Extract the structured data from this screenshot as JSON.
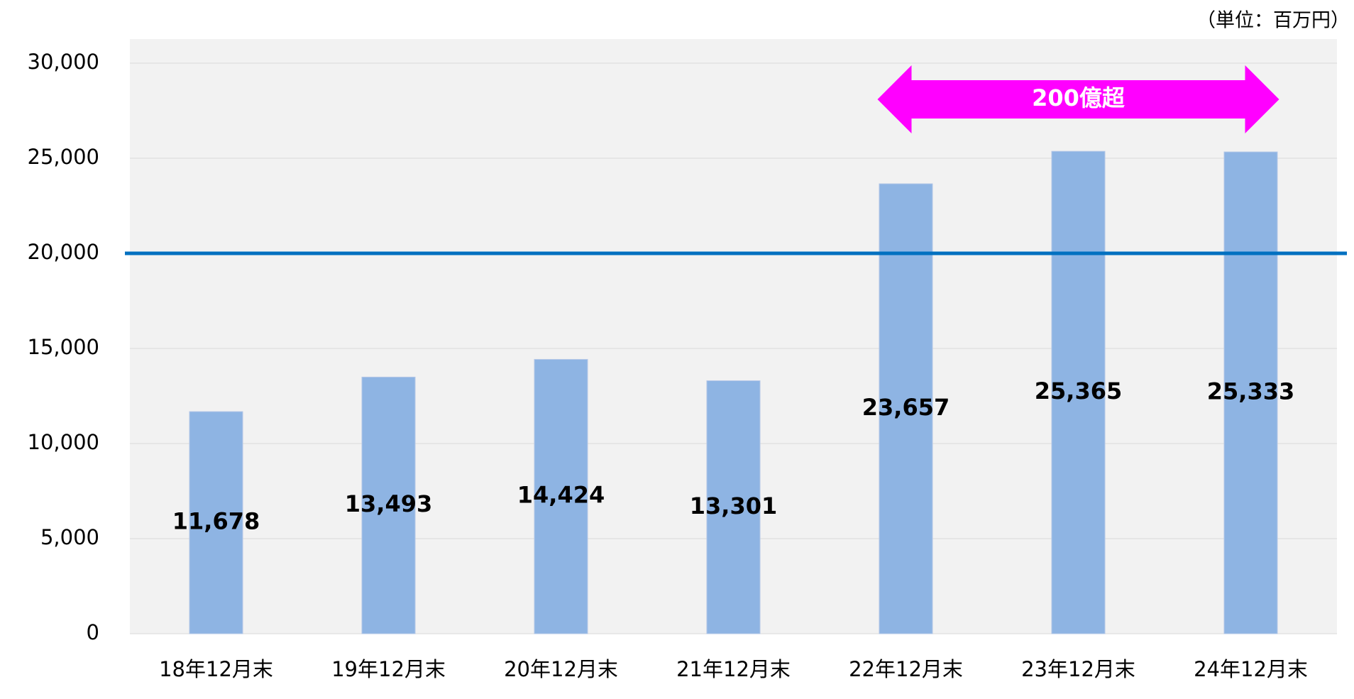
{
  "chart_data": {
    "type": "bar",
    "unit_note": "（単位：百万円）",
    "annotation": "200億超",
    "categories": [
      "18年12月末",
      "19年12月末",
      "20年12月末",
      "21年12月末",
      "22年12月末",
      "23年12月末",
      "24年12月末"
    ],
    "values": [
      11678,
      13493,
      14424,
      13301,
      23657,
      25365,
      25333
    ],
    "value_labels": [
      "11,678",
      "13,493",
      "14,424",
      "13,301",
      "23,657",
      "25,365",
      "25,333"
    ],
    "color": "#8eb4e3",
    "ylim": [
      0,
      30000
    ],
    "yticks": [
      0,
      {
        "value": 5000,
        "label": "5,000"
      },
      {
        "value": 10000,
        "label": "10,000"
      },
      {
        "value": 15000,
        "label": "15,000"
      },
      {
        "value": 20000,
        "label": "20,000"
      },
      {
        "value": 25000,
        "label": "25,000"
      },
      {
        "value": 30000,
        "label": "30,000"
      }
    ],
    "grid": true,
    "reference_line": {
      "value": 20000,
      "color": "#0070c0"
    }
  }
}
